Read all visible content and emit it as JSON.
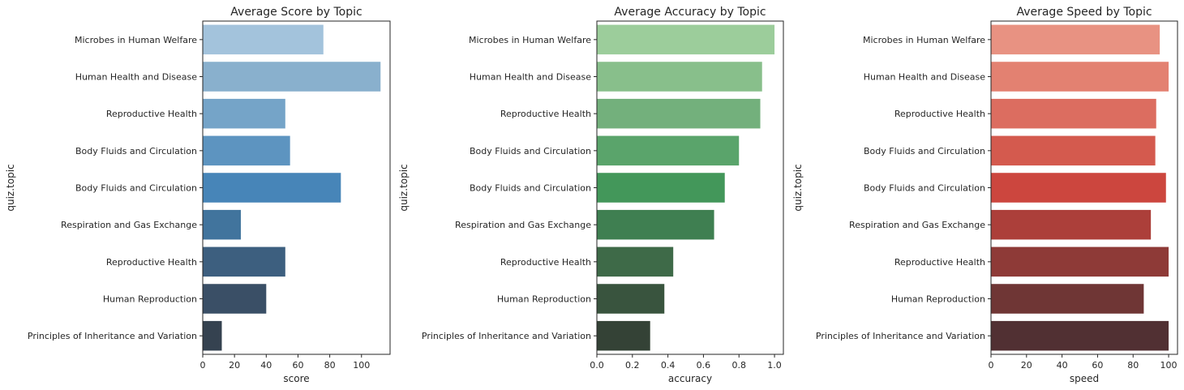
{
  "chart_data": [
    {
      "type": "bar",
      "orientation": "horizontal",
      "title": "Average Score by Topic",
      "xlabel": "score",
      "ylabel": "quiz.topic",
      "categories": [
        "Microbes in Human Welfare",
        "Human Health and Disease",
        "Reproductive Health",
        "Body Fluids and Circulation",
        "Body Fluids and Circulation",
        "Respiration and Gas Exchange",
        "Reproductive Health",
        "Human Reproduction",
        "Principles of Inheritance and Variation"
      ],
      "values": [
        76,
        112,
        52,
        55,
        87,
        24,
        52,
        40,
        12
      ],
      "xlim": [
        0,
        118
      ],
      "xticks": [
        0,
        20,
        40,
        60,
        80,
        100
      ],
      "xtick_labels": [
        "0",
        "20",
        "40",
        "60",
        "80",
        "100"
      ],
      "colors": [
        "#a3c3dc",
        "#89b0cd",
        "#75a4c8",
        "#5d94c0",
        "#4785b8",
        "#41749d",
        "#3d5f7f",
        "#3a4f66",
        "#354250"
      ],
      "grid": false
    },
    {
      "type": "bar",
      "orientation": "horizontal",
      "title": "Average Accuracy by Topic",
      "xlabel": "accuracy",
      "ylabel": "quiz.topic",
      "categories": [
        "Microbes in Human Welfare",
        "Human Health and Disease",
        "Reproductive Health",
        "Body Fluids and Circulation",
        "Body Fluids and Circulation",
        "Respiration and Gas Exchange",
        "Reproductive Health",
        "Human Reproduction",
        "Principles of Inheritance and Variation"
      ],
      "values": [
        1.0,
        0.93,
        0.92,
        0.8,
        0.72,
        0.66,
        0.43,
        0.38,
        0.3
      ],
      "xlim": [
        0,
        1.05
      ],
      "xticks": [
        0,
        0.2,
        0.4,
        0.6,
        0.8,
        1.0
      ],
      "xtick_labels": [
        "0.0",
        "0.2",
        "0.4",
        "0.6",
        "0.8",
        "1.0"
      ],
      "colors": [
        "#9ccd9b",
        "#88bf8b",
        "#73b07c",
        "#5aa46b",
        "#43975a",
        "#3f7f51",
        "#3e6a48",
        "#39543e",
        "#344236"
      ],
      "grid": false
    },
    {
      "type": "bar",
      "orientation": "horizontal",
      "title": "Average Speed by Topic",
      "xlabel": "speed",
      "ylabel": "quiz.topic",
      "categories": [
        "Microbes in Human Welfare",
        "Human Health and Disease",
        "Reproductive Health",
        "Body Fluids and Circulation",
        "Body Fluids and Circulation",
        "Respiration and Gas Exchange",
        "Reproductive Health",
        "Human Reproduction",
        "Principles of Inheritance and Variation"
      ],
      "values": [
        95,
        100,
        93,
        92.5,
        98.5,
        90,
        100,
        86,
        100
      ],
      "xlim": [
        0,
        105
      ],
      "xticks": [
        0,
        20,
        40,
        60,
        80,
        100
      ],
      "xtick_labels": [
        "0",
        "20",
        "40",
        "60",
        "80",
        "100"
      ],
      "colors": [
        "#e89282",
        "#e38171",
        "#dc6d60",
        "#d45a4e",
        "#cc463e",
        "#ac3f3a",
        "#8e3a37",
        "#6f3635",
        "#513033"
      ],
      "grid": false
    }
  ]
}
